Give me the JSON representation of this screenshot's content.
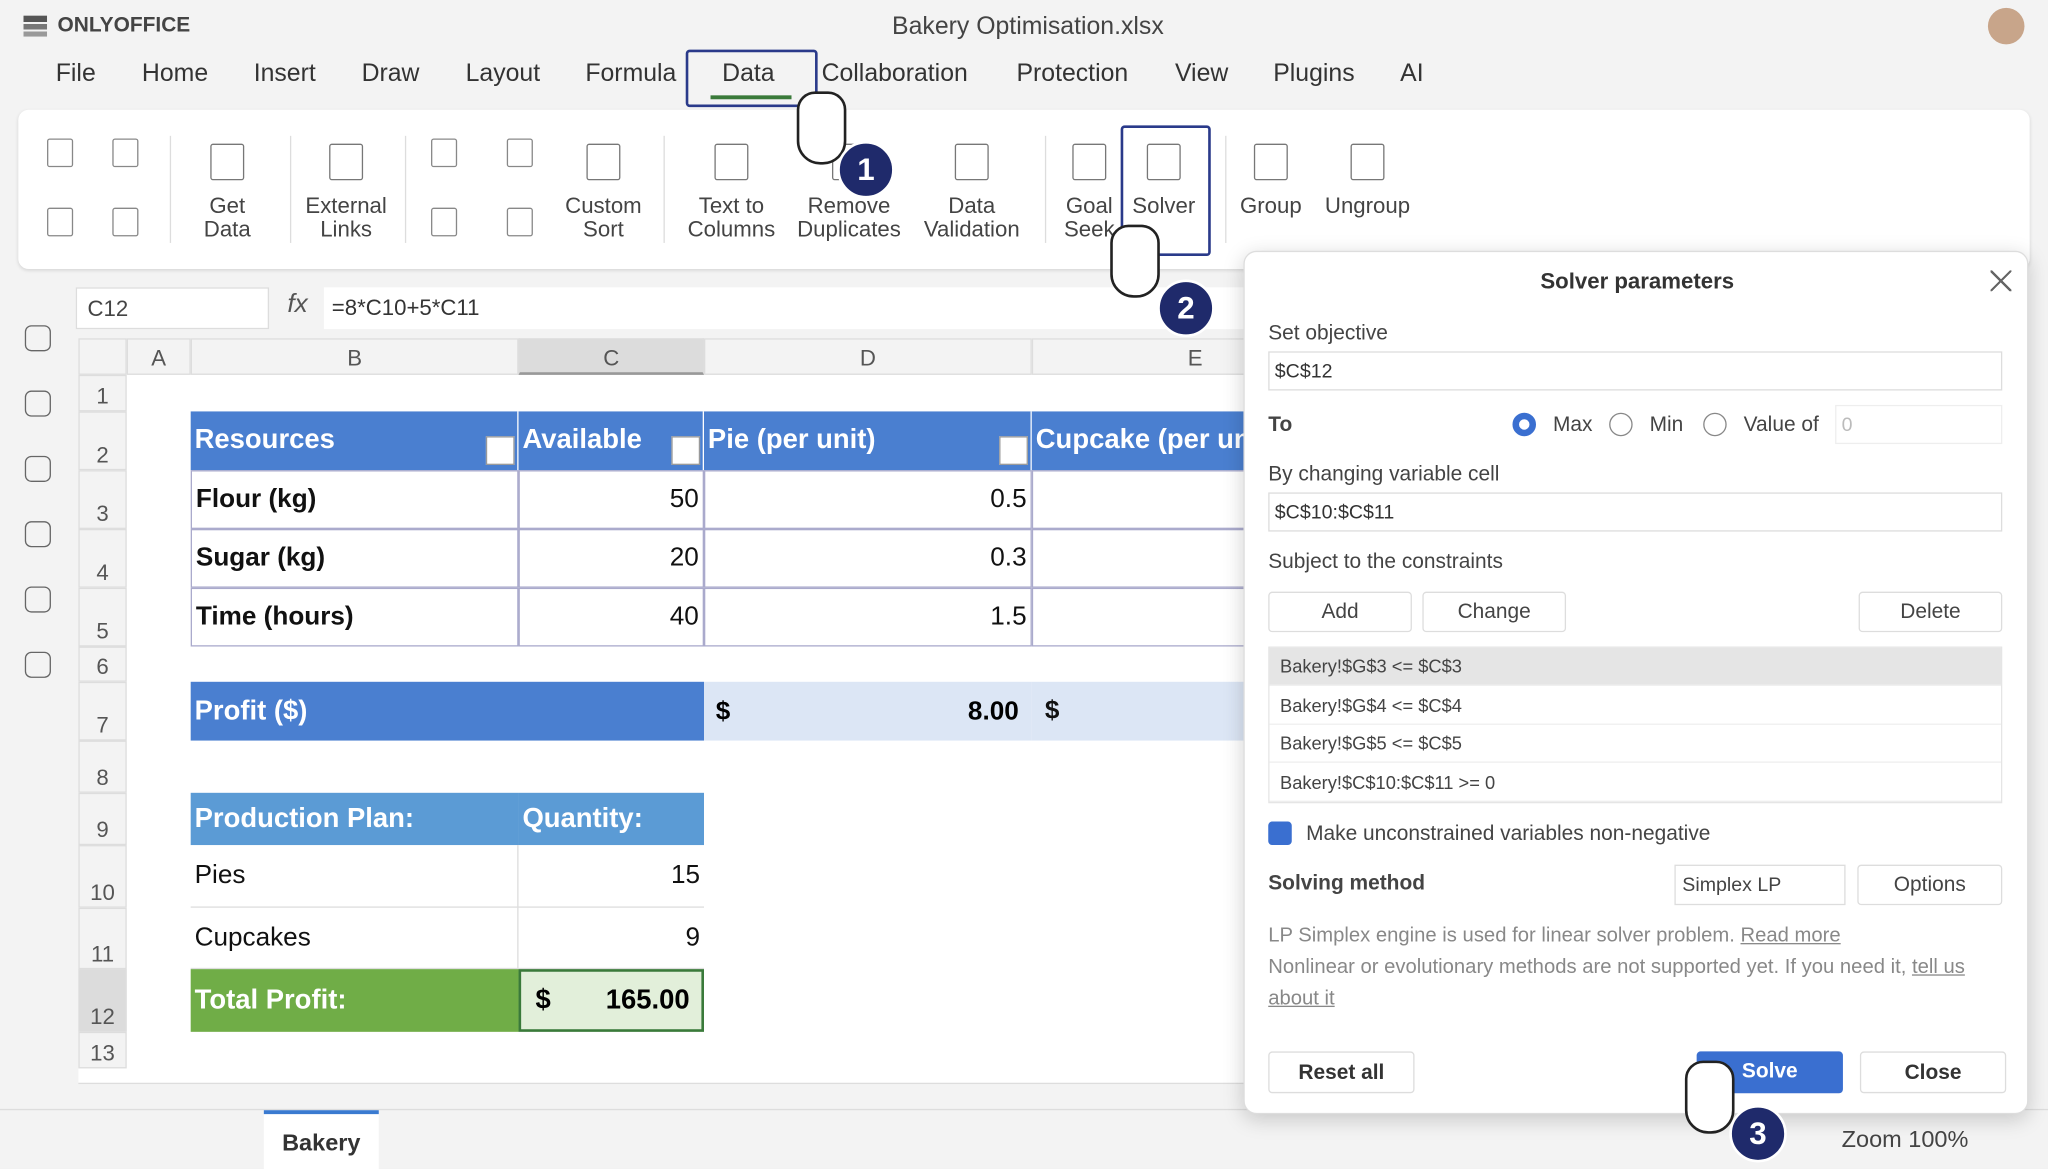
{
  "header": {
    "app": "ONLYOFFICE",
    "file": "Bakery Optimisation.xlsx"
  },
  "menu": [
    "File",
    "Home",
    "Insert",
    "Draw",
    "Layout",
    "Formula",
    "Data",
    "Collaboration",
    "Protection",
    "View",
    "Plugins",
    "AI"
  ],
  "toolbar": [
    "Get Data",
    "External Links",
    "Custom Sort",
    "Text to Columns",
    "Remove Duplicates",
    "Data Validation",
    "Goal Seek",
    "Solver",
    "Group",
    "Ungroup"
  ],
  "formula_bar": {
    "cell": "C12",
    "fx": "fx",
    "formula": "=8*C10+5*C11"
  },
  "columns": [
    "A",
    "B",
    "C",
    "D",
    "E"
  ],
  "rows": [
    1,
    2,
    3,
    4,
    5,
    6,
    7,
    8,
    9,
    10,
    11,
    12,
    13
  ],
  "sheet": {
    "resources_header": [
      "Resources",
      "Available",
      "Pie (per unit)",
      "Cupcake (per unit)"
    ],
    "resources": [
      [
        "Flour (kg)",
        50,
        0.5
      ],
      [
        "Sugar (kg)",
        20,
        0.3
      ],
      [
        "Time (hours)",
        40,
        1.5
      ]
    ],
    "profit": {
      "label": "Profit ($)",
      "currency": "$",
      "pie": "8.00",
      "cupcake_currency": "$"
    },
    "plan_header": [
      "Production Plan:",
      "Quantity:"
    ],
    "plan": [
      [
        "Pies",
        15
      ],
      [
        "Cupcakes",
        9
      ]
    ],
    "total": {
      "label": "Total Profit:",
      "currency": "$",
      "value": "165.00"
    }
  },
  "dialog": {
    "title": "Solver parameters",
    "objective_label": "Set objective",
    "objective": "$C$12",
    "to_label": "To",
    "to_options": [
      "Max",
      "Min",
      "Value of"
    ],
    "value_of": "0",
    "changing_label": "By changing variable cell",
    "changing": "$C$10:$C$11",
    "constraints_label": "Subject to the constraints",
    "constraint_buttons": [
      "Add",
      "Change",
      "Delete"
    ],
    "constraints": [
      "Bakery!$G$3 <= $C$3",
      "Bakery!$G$4 <= $C$4",
      "Bakery!$G$5 <= $C$5",
      "Bakery!$C$10:$C$11 >= 0"
    ],
    "nonneg": "Make unconstrained variables non-negative",
    "method_label": "Solving method",
    "method": "Simplex LP",
    "options": "Options",
    "note": "LP Simplex engine is used for linear solver problem.",
    "read_more": "Read more",
    "note2": "Nonlinear or evolutionary methods are not supported yet. If you need it,",
    "tell_us": "tell us about it",
    "reset": "Reset all",
    "solve": "Solve",
    "close": "Close"
  },
  "steps": [
    "1",
    "2",
    "3"
  ],
  "status": {
    "tab": "Bakery",
    "zoom": "Zoom 100%"
  }
}
